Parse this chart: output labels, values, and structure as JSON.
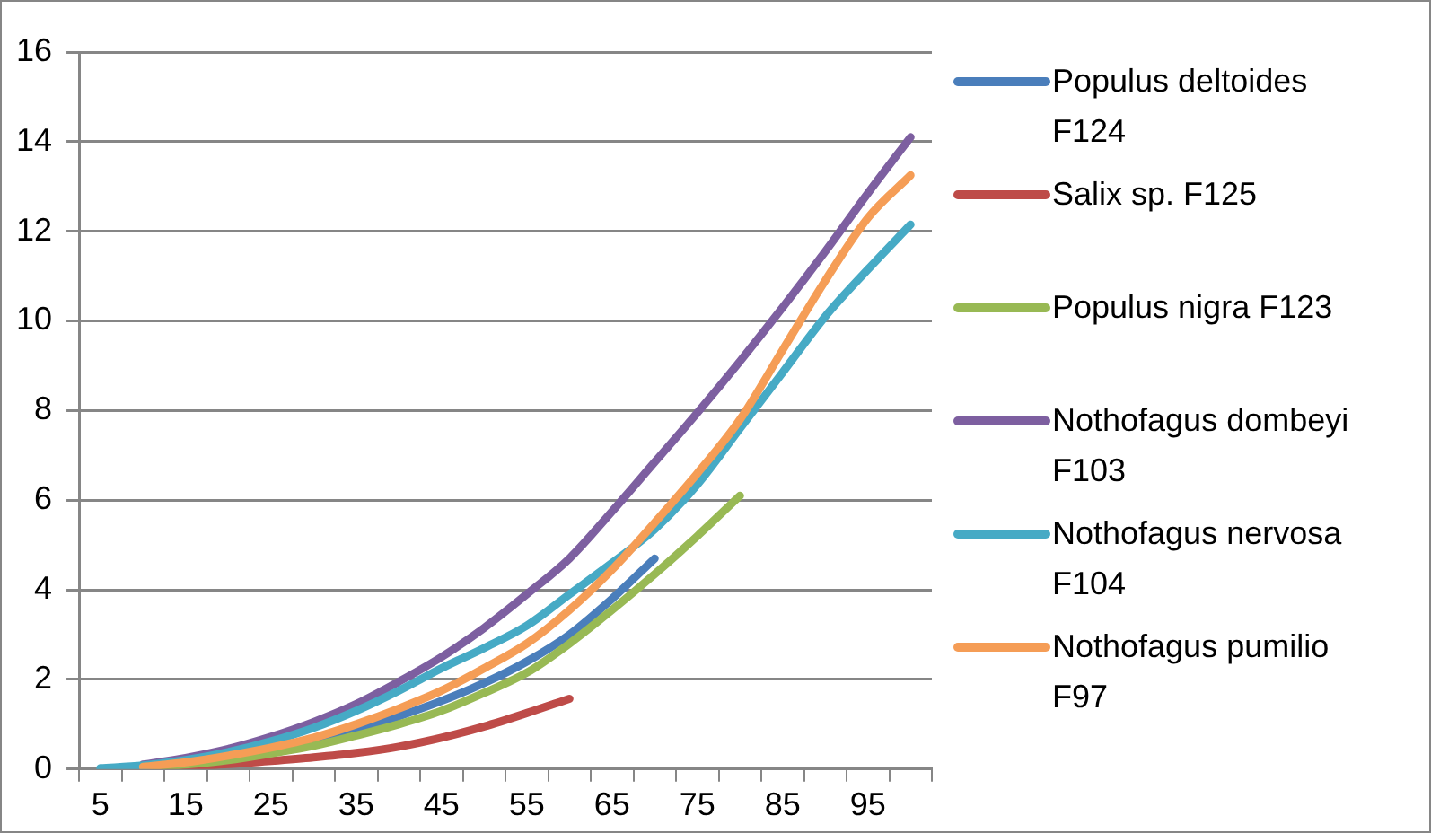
{
  "chart_data": {
    "type": "line",
    "categories": [
      "5",
      null,
      "15",
      null,
      "25",
      null,
      "35",
      null,
      "45",
      null,
      "55",
      null,
      "65",
      null,
      "75",
      null,
      "85",
      null,
      "95",
      null
    ],
    "series": [
      {
        "name": "Populus deltoides F124",
        "color": "#4a7ebb",
        "values": [
          null,
          0.05,
          0.13,
          0.27,
          0.43,
          0.63,
          0.88,
          1.18,
          1.52,
          1.92,
          2.4,
          3.0,
          3.8,
          4.7,
          null,
          null,
          null,
          null,
          null,
          null
        ]
      },
      {
        "name": "Salix sp. F125",
        "color": "#be4b48",
        "values": [
          null,
          0.02,
          0.06,
          0.11,
          0.18,
          0.26,
          0.36,
          0.5,
          0.7,
          0.95,
          1.25,
          1.57,
          null,
          null,
          null,
          null,
          null,
          null,
          null,
          null
        ]
      },
      {
        "name": "Populus nigra F123",
        "color": "#98b954",
        "values": [
          null,
          0.03,
          0.1,
          0.2,
          0.35,
          0.52,
          0.75,
          1.0,
          1.3,
          1.7,
          2.15,
          2.8,
          3.55,
          4.35,
          5.2,
          6.1,
          null,
          null,
          null,
          null
        ]
      },
      {
        "name": "Nothofagus dombeyi F103",
        "color": "#7d5fa0",
        "values": [
          null,
          0.1,
          0.25,
          0.45,
          0.72,
          1.05,
          1.45,
          1.95,
          2.5,
          3.15,
          3.9,
          4.7,
          5.75,
          6.85,
          7.95,
          9.1,
          10.3,
          11.55,
          12.85,
          14.1
        ]
      },
      {
        "name": "Nothofagus nervosa F104",
        "color": "#46aac5",
        "values": [
          0.02,
          0.08,
          0.2,
          0.38,
          0.62,
          0.92,
          1.3,
          1.75,
          2.25,
          2.7,
          3.2,
          3.9,
          4.6,
          5.35,
          6.35,
          7.6,
          8.85,
          10.1,
          11.15,
          12.15
        ]
      },
      {
        "name": "Nothofagus pumilio F97",
        "color": "#f59d56",
        "values": [
          null,
          0.05,
          0.15,
          0.3,
          0.48,
          0.7,
          1.0,
          1.35,
          1.75,
          2.25,
          2.8,
          3.55,
          4.45,
          5.5,
          6.6,
          7.8,
          9.35,
          10.9,
          12.3,
          13.25
        ]
      }
    ],
    "ylim": [
      0,
      16
    ],
    "yticks": [
      0,
      2,
      4,
      6,
      8,
      10,
      12,
      14,
      16
    ],
    "grid": "y",
    "legend": "right",
    "marker": "none",
    "line_style": "solid"
  }
}
